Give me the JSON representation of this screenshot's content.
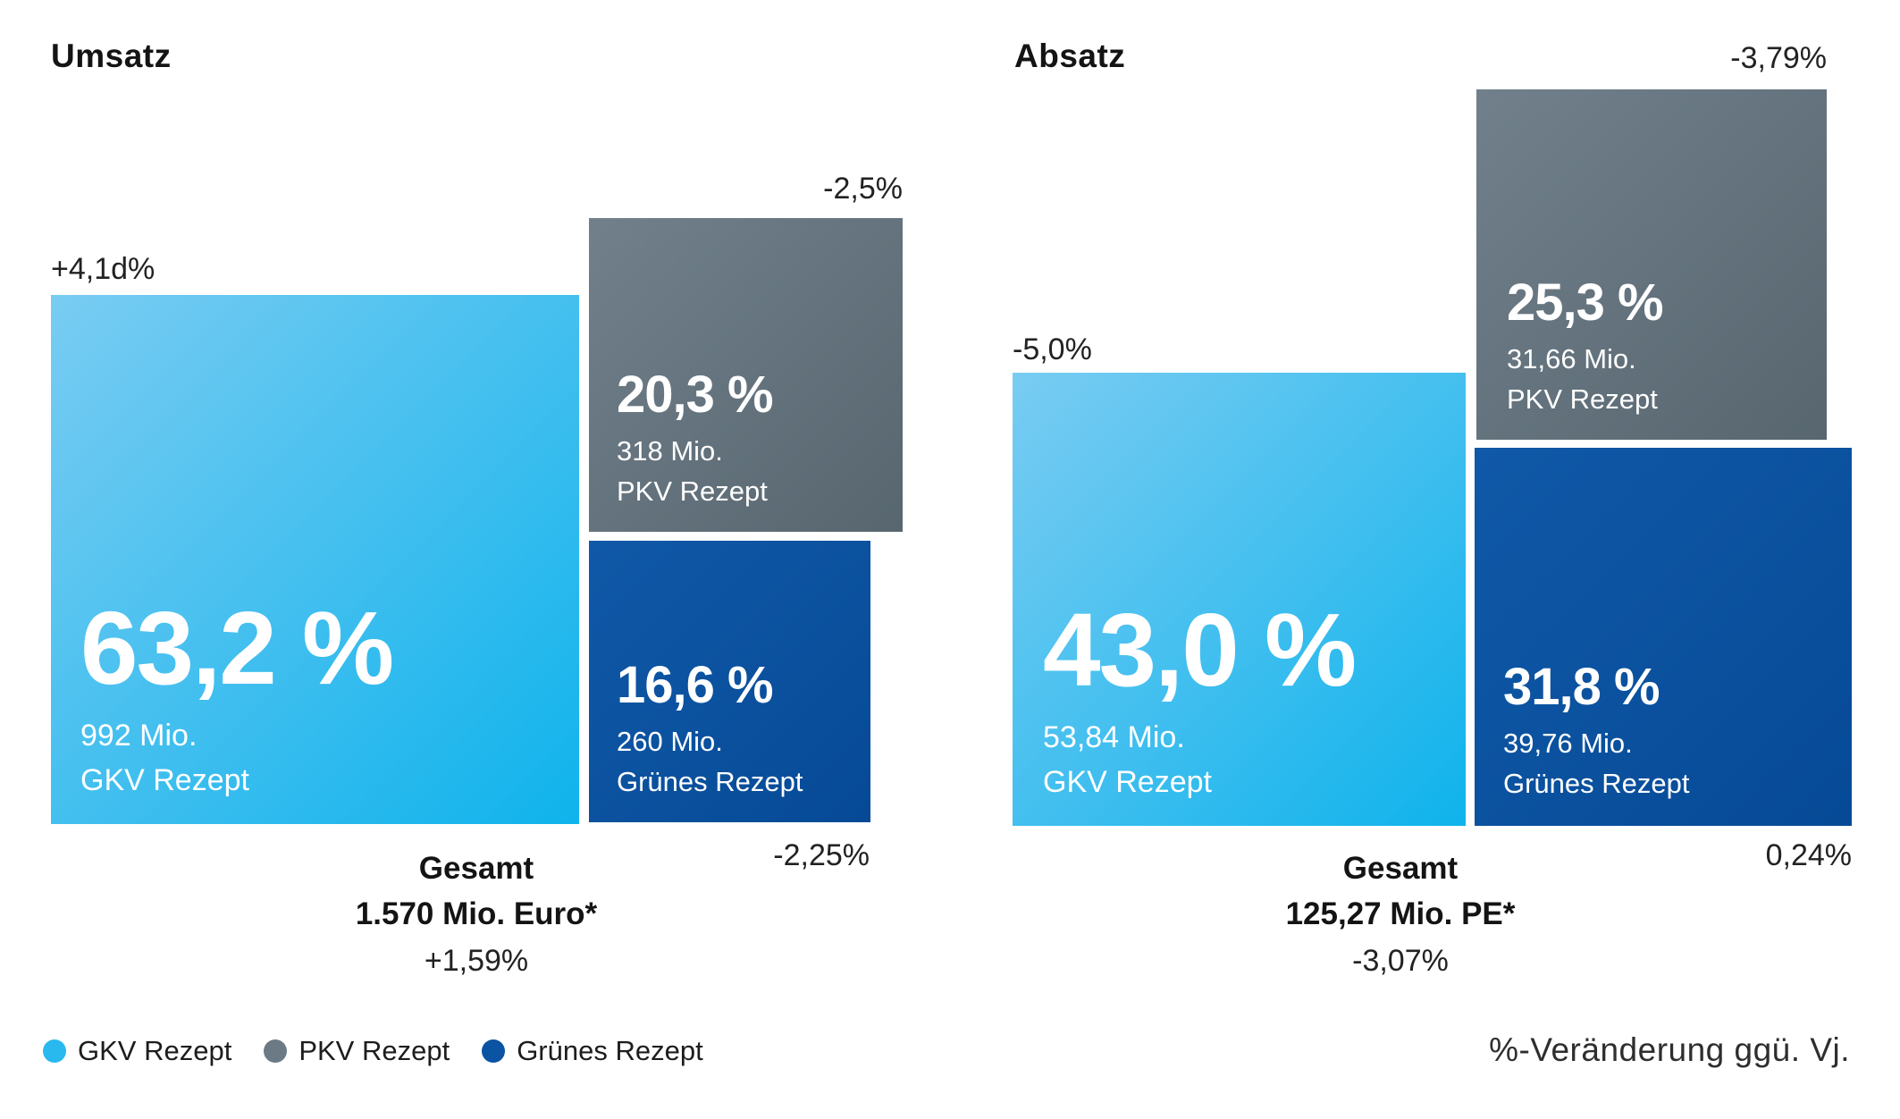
{
  "charts": [
    {
      "title": "Umsatz",
      "segments": [
        {
          "label": "GKV Rezept",
          "share": "63,2 %",
          "amount": "992 Mio.",
          "change": "+4,1d%"
        },
        {
          "label": "PKV Rezept",
          "share": "20,3 %",
          "amount": "318 Mio.",
          "change": "-2,5%"
        },
        {
          "label": "Grünes Rezept",
          "share": "16,6 %",
          "amount": "260 Mio.",
          "change": "-2,25%"
        }
      ],
      "total": {
        "label": "Gesamt",
        "value": "1.570 Mio. Euro*",
        "change": "+1,59%"
      }
    },
    {
      "title": "Absatz",
      "segments": [
        {
          "label": "GKV Rezept",
          "share": "43,0 %",
          "amount": "53,84 Mio.",
          "change": "-5,0%"
        },
        {
          "label": "PKV Rezept",
          "share": "25,3 %",
          "amount": "31,66 Mio.",
          "change": "-3,79%"
        },
        {
          "label": "Grünes Rezept",
          "share": "31,8 %",
          "amount": "39,76 Mio.",
          "change": "0,24%"
        }
      ],
      "total": {
        "label": "Gesamt",
        "value": "125,27 Mio. PE*",
        "change": "-3,07%"
      }
    }
  ],
  "legend": {
    "items": [
      {
        "label": "GKV Rezept",
        "color": "#29b9ee"
      },
      {
        "label": "PKV Rezept",
        "color": "#6b7a85"
      },
      {
        "label": "Grünes Rezept",
        "color": "#0b53a3"
      }
    ]
  },
  "footnote": "%-Veränderung ggü. Vj.",
  "colors": {
    "gkv_gradient": [
      "#79ccf2",
      "#0fb3ec"
    ],
    "pkv_gradient": [
      "#71808b",
      "#57666f"
    ],
    "gruenes_gradient": [
      "#1059a8",
      "#064a96"
    ]
  },
  "chart_data": [
    {
      "type": "pie",
      "variant": "proportional-squares",
      "title": "Umsatz",
      "categories": [
        "GKV Rezept",
        "PKV Rezept",
        "Grünes Rezept"
      ],
      "values_percent": [
        63.2,
        20.3,
        16.6
      ],
      "values_abs_mio": [
        992,
        318,
        260
      ],
      "change_vs_prev_year_percent": [
        4.1,
        -2.5,
        -2.25
      ],
      "change_labels": [
        "+4,1d%",
        "-2,5%",
        "-2,25%"
      ],
      "total_label": "Gesamt",
      "total_value": "1.570 Mio. Euro*",
      "total_change_percent": 1.59,
      "legend_position": "bottom-left",
      "note": "%-Veränderung ggü. Vj."
    },
    {
      "type": "pie",
      "variant": "proportional-squares",
      "title": "Absatz",
      "categories": [
        "GKV Rezept",
        "PKV Rezept",
        "Grünes Rezept"
      ],
      "values_percent": [
        43.0,
        25.3,
        31.8
      ],
      "values_abs_mio": [
        53.84,
        31.66,
        39.76
      ],
      "change_vs_prev_year_percent": [
        -5.0,
        -3.79,
        0.24
      ],
      "change_labels": [
        "-5,0%",
        "-3,79%",
        "0,24%"
      ],
      "total_label": "Gesamt",
      "total_value": "125,27 Mio. PE*",
      "total_change_percent": -3.07,
      "legend_position": "bottom-left",
      "note": "%-Veränderung ggü. Vj."
    }
  ]
}
